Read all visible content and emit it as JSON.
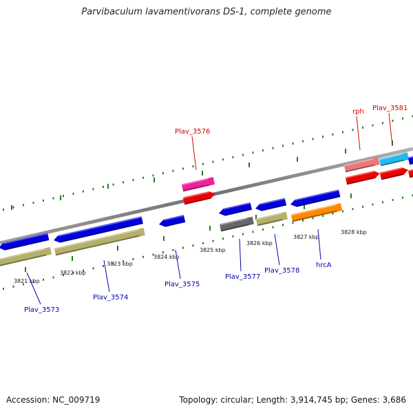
{
  "title": "Parvibaculum lavamentivorans DS-1, complete genome",
  "footer": {
    "accession": "Accession: NC_009719",
    "summary": "Topology: circular; Length: 3,914,745 bp; Genes: 3,686"
  },
  "colors": {
    "backbone": "#8c8c8c",
    "tick": "#1e7a1e",
    "forward_label": "#cc0000",
    "reverse_label": "#0000aa"
  },
  "ticks": [
    {
      "label": "3821 kbp",
      "kbp": 3821
    },
    {
      "label": "3822 kbp",
      "kbp": 3822
    },
    {
      "label": "3823 kbp",
      "kbp": 3823
    },
    {
      "label": "3824 kbp",
      "kbp": 3824
    },
    {
      "label": "3825 kbp",
      "kbp": 3825
    },
    {
      "label": "3826 kbp",
      "kbp": 3826
    },
    {
      "label": "3827 kbp",
      "kbp": 3827
    },
    {
      "label": "3828 kbp",
      "kbp": 3828
    }
  ],
  "genes": [
    {
      "name": "Plav_3573",
      "strand": "reverse",
      "color": "#0000dd",
      "track2": "#b5b06a"
    },
    {
      "name": "Plav_3574",
      "strand": "reverse",
      "color": "#0000dd",
      "track2": "#b5b06a"
    },
    {
      "name": "Plav_3575",
      "strand": "reverse",
      "color": "#0000dd"
    },
    {
      "name": "Plav_3576",
      "strand": "forward",
      "color": "#ee2299",
      "track2": "#ee0000"
    },
    {
      "name": "Plav_3577",
      "strand": "reverse",
      "color": "#0000dd",
      "track2": "#666666"
    },
    {
      "name": "Plav_3578",
      "strand": "reverse",
      "color": "#0000dd",
      "track2": "#b5b06a"
    },
    {
      "name": "hrcA",
      "strand": "reverse",
      "color": "#0000dd",
      "track2": "#ff8800"
    },
    {
      "name": "rph",
      "strand": "forward",
      "color": "#ee7777",
      "track2": "#ee0000"
    },
    {
      "name": "Plav_3581",
      "strand": "forward",
      "color": "#22bbee",
      "track2": "#ee0000"
    }
  ]
}
